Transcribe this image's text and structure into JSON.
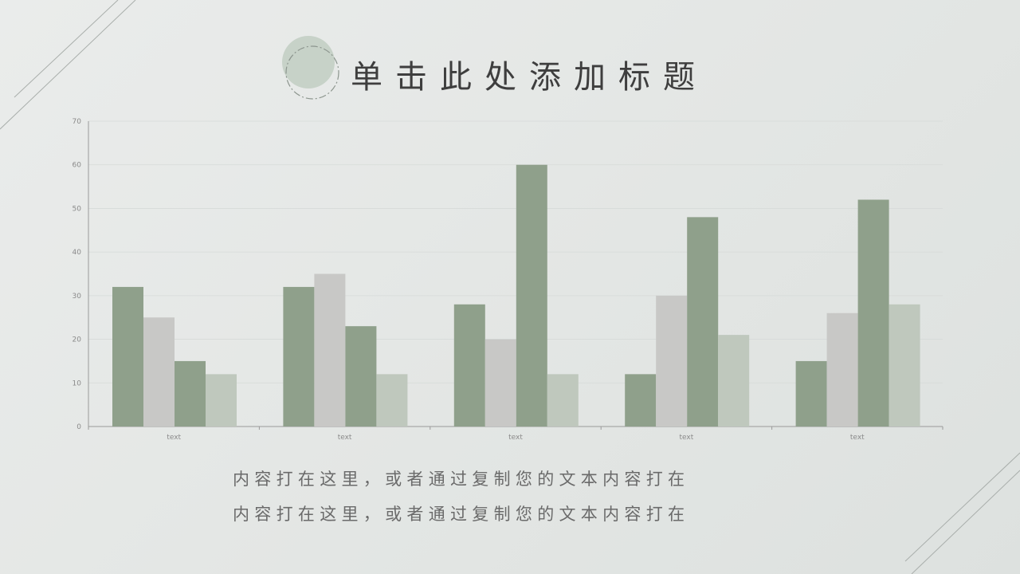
{
  "title": "单击此处添加标题",
  "body_lines": [
    "内容打在这里，或者通过复制您的文本内容打在",
    "内容打在这里，或者通过复制您的文本内容打在"
  ],
  "colors": {
    "background": "#e6e8e7",
    "series_dark": "#8fa08b",
    "series_gray": "#c8c8c6",
    "series_light": "#bfc8bd",
    "badge_fill": "#c7d2c8",
    "title_text": "#3e3e3e",
    "body_text": "#6a6a6a"
  },
  "chart_data": {
    "type": "bar",
    "categories": [
      "text",
      "text",
      "text",
      "text",
      "text"
    ],
    "series": [
      {
        "values": [
          32,
          32,
          28,
          12,
          15
        ],
        "color": "#8fa08b"
      },
      {
        "values": [
          25,
          35,
          20,
          30,
          26
        ],
        "color": "#c8c8c6"
      },
      {
        "values": [
          15,
          23,
          60,
          48,
          52
        ],
        "color": "#8fa08b"
      },
      {
        "values": [
          12,
          12,
          12,
          21,
          28
        ],
        "color": "#bfc8bd"
      }
    ],
    "yticks": [
      0,
      10,
      20,
      30,
      40,
      50,
      60,
      70
    ],
    "ylim": [
      0,
      70
    ],
    "grid": true,
    "legend": "none"
  }
}
